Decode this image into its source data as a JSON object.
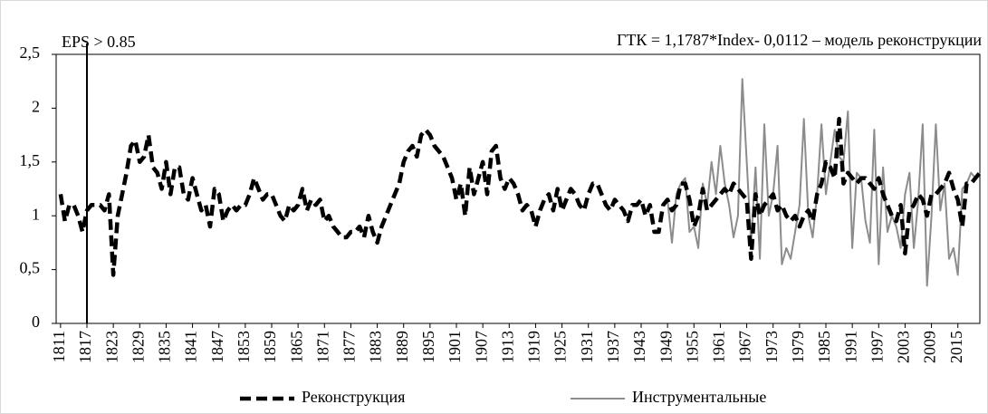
{
  "chart_data": {
    "type": "line",
    "title": "ГТК = 1,1787*Index- 0,0112 – модель реконструкции",
    "annotations": [
      {
        "text": "EPS > 0.85",
        "x": 1817
      }
    ],
    "xlim": [
      1810,
      2020
    ],
    "xticks": [
      1811,
      1817,
      1823,
      1829,
      1835,
      1841,
      1847,
      1853,
      1859,
      1865,
      1871,
      1877,
      1883,
      1889,
      1895,
      1901,
      1907,
      1913,
      1919,
      1925,
      1931,
      1937,
      1943,
      1949,
      1955,
      1961,
      1967,
      1973,
      1979,
      1985,
      1991,
      1997,
      2003,
      2009,
      2015
    ],
    "ylim": [
      0,
      2.5
    ],
    "yticks": [
      0,
      {
        "value": 0.5,
        "label": "0,5"
      },
      1,
      {
        "value": 1.5,
        "label": "1,5"
      },
      2,
      {
        "value": 2.5,
        "label": "2,5"
      }
    ],
    "legend": "bottom",
    "series": [
      {
        "name": "Реконструкция",
        "color": "#000000",
        "dashed": true,
        "x": [
          1811,
          1812,
          1813,
          1814,
          1815,
          1816,
          1817,
          1818,
          1819,
          1820,
          1821,
          1822,
          1823,
          1824,
          1825,
          1826,
          1827,
          1828,
          1829,
          1830,
          1831,
          1832,
          1833,
          1834,
          1835,
          1836,
          1837,
          1838,
          1839,
          1840,
          1841,
          1842,
          1843,
          1844,
          1845,
          1846,
          1847,
          1848,
          1849,
          1850,
          1851,
          1852,
          1853,
          1854,
          1855,
          1856,
          1857,
          1858,
          1859,
          1860,
          1861,
          1862,
          1863,
          1864,
          1865,
          1866,
          1867,
          1868,
          1869,
          1870,
          1871,
          1872,
          1873,
          1874,
          1875,
          1876,
          1877,
          1878,
          1879,
          1880,
          1881,
          1882,
          1883,
          1884,
          1885,
          1886,
          1887,
          1888,
          1889,
          1890,
          1891,
          1892,
          1893,
          1894,
          1895,
          1896,
          1897,
          1898,
          1899,
          1900,
          1901,
          1902,
          1903,
          1904,
          1905,
          1906,
          1907,
          1908,
          1909,
          1910,
          1911,
          1912,
          1913,
          1914,
          1915,
          1916,
          1917,
          1918,
          1919,
          1920,
          1921,
          1922,
          1923,
          1924,
          1925,
          1926,
          1927,
          1928,
          1929,
          1930,
          1931,
          1932,
          1933,
          1934,
          1935,
          1936,
          1937,
          1938,
          1939,
          1940,
          1941,
          1942,
          1943,
          1944,
          1945,
          1946,
          1947,
          1948,
          1949,
          1950,
          1951,
          1952,
          1953,
          1954,
          1955,
          1956,
          1957,
          1958,
          1959,
          1960,
          1961,
          1962,
          1963,
          1964,
          1965,
          1966,
          1967,
          1968,
          1969,
          1970,
          1971,
          1972,
          1973,
          1974,
          1975,
          1976,
          1977,
          1978,
          1979,
          1980,
          1981,
          1982,
          1983,
          1984,
          1985,
          1986,
          1987,
          1988,
          1989,
          1990,
          1991,
          1992,
          1993,
          1994,
          1995,
          1996,
          1997,
          1998,
          1999,
          2000,
          2001,
          2002,
          2003,
          2004,
          2005,
          2006,
          2007,
          2008,
          2009,
          2010,
          2011,
          2012,
          2013,
          2014,
          2015,
          2016,
          2017,
          2018,
          2019,
          2020
        ],
        "values": [
          1.2,
          0.95,
          1.1,
          1.1,
          1.0,
          0.85,
          1.05,
          1.1,
          1.1,
          1.1,
          1.05,
          1.2,
          0.45,
          1.0,
          1.2,
          1.4,
          1.65,
          1.7,
          1.5,
          1.55,
          1.75,
          1.45,
          1.4,
          1.25,
          1.5,
          1.2,
          1.45,
          1.45,
          1.2,
          1.15,
          1.35,
          1.2,
          1.05,
          1.1,
          0.9,
          1.25,
          1.2,
          0.95,
          1.05,
          1.1,
          1.05,
          1.1,
          1.1,
          1.2,
          1.35,
          1.25,
          1.15,
          1.2,
          1.2,
          1.1,
          1.0,
          0.95,
          1.1,
          1.05,
          1.1,
          1.25,
          1.05,
          1.15,
          1.1,
          1.15,
          0.95,
          1.0,
          0.9,
          0.85,
          0.8,
          0.8,
          0.85,
          0.85,
          0.9,
          0.8,
          1.0,
          0.85,
          0.75,
          0.9,
          1.0,
          1.1,
          1.2,
          1.3,
          1.5,
          1.6,
          1.65,
          1.55,
          1.75,
          1.8,
          1.75,
          1.65,
          1.6,
          1.55,
          1.45,
          1.35,
          1.15,
          1.3,
          1.0,
          1.45,
          1.2,
          1.35,
          1.5,
          1.2,
          1.6,
          1.65,
          1.35,
          1.25,
          1.35,
          1.3,
          1.2,
          1.05,
          1.1,
          1.05,
          0.9,
          1.05,
          1.15,
          1.2,
          1.05,
          1.25,
          1.05,
          1.15,
          1.25,
          1.2,
          1.1,
          1.05,
          1.2,
          1.3,
          1.3,
          1.2,
          1.1,
          1.05,
          1.15,
          1.1,
          1.05,
          0.95,
          1.1,
          1.1,
          1.15,
          1.0,
          1.1,
          0.85,
          0.85,
          1.1,
          1.15,
          1.05,
          1.1,
          1.3,
          1.3,
          1.15,
          0.9,
          1.0,
          1.25,
          1.05,
          1.1,
          1.15,
          1.2,
          1.25,
          1.2,
          1.3,
          1.25,
          1.2,
          1.15,
          0.6,
          1.2,
          1.0,
          1.1,
          1.15,
          1.2,
          1.05,
          1.1,
          1.0,
          0.95,
          1.0,
          0.9,
          1.0,
          1.05,
          0.95,
          1.2,
          1.3,
          1.5,
          1.45,
          1.35,
          1.9,
          1.3,
          1.4,
          1.35,
          1.3,
          1.35,
          1.35,
          1.3,
          1.25,
          1.35,
          1.2,
          1.1,
          1.0,
          0.95,
          1.1,
          0.65,
          1.05,
          1.1,
          1.2,
          1.15,
          1.0,
          1.2,
          1.2,
          1.25,
          1.3,
          1.4,
          1.25,
          1.15,
          0.9,
          1.3,
          1.3,
          1.35,
          1.4
        ]
      },
      {
        "name": "Инструментальные",
        "color": "#8c8c8c",
        "dashed": false,
        "x": [
          1949,
          1950,
          1951,
          1952,
          1953,
          1954,
          1955,
          1956,
          1957,
          1958,
          1959,
          1960,
          1961,
          1962,
          1963,
          1964,
          1965,
          1966,
          1967,
          1968,
          1969,
          1970,
          1971,
          1972,
          1973,
          1974,
          1975,
          1976,
          1977,
          1978,
          1979,
          1980,
          1981,
          1982,
          1983,
          1984,
          1985,
          1986,
          1987,
          1988,
          1989,
          1990,
          1991,
          1992,
          1993,
          1994,
          1995,
          1996,
          1997,
          1998,
          1999,
          2000,
          2001,
          2002,
          2003,
          2004,
          2005,
          2006,
          2007,
          2008,
          2009,
          2010,
          2011,
          2012,
          2013,
          2014,
          2015,
          2016,
          2017,
          2018,
          2019,
          2020
        ],
        "values": [
          1.15,
          0.75,
          1.2,
          1.3,
          1.35,
          0.85,
          0.9,
          0.7,
          1.3,
          1.1,
          1.5,
          1.2,
          1.65,
          1.3,
          1.1,
          0.8,
          1.0,
          2.27,
          1.5,
          0.75,
          1.45,
          0.6,
          1.85,
          1.0,
          1.2,
          1.65,
          0.55,
          0.7,
          0.6,
          0.85,
          1.1,
          1.9,
          1.0,
          0.8,
          1.2,
          1.85,
          1.2,
          1.5,
          1.8,
          1.55,
          1.5,
          1.97,
          0.7,
          1.4,
          1.35,
          0.95,
          0.75,
          1.8,
          0.55,
          1.45,
          0.85,
          1.0,
          0.9,
          0.7,
          1.2,
          1.4,
          0.7,
          1.15,
          1.85,
          0.35,
          1.0,
          1.85,
          1.05,
          1.3,
          0.6,
          0.7,
          0.45,
          1.25,
          1.3,
          1.4,
          1.35,
          1.4
        ]
      }
    ]
  }
}
